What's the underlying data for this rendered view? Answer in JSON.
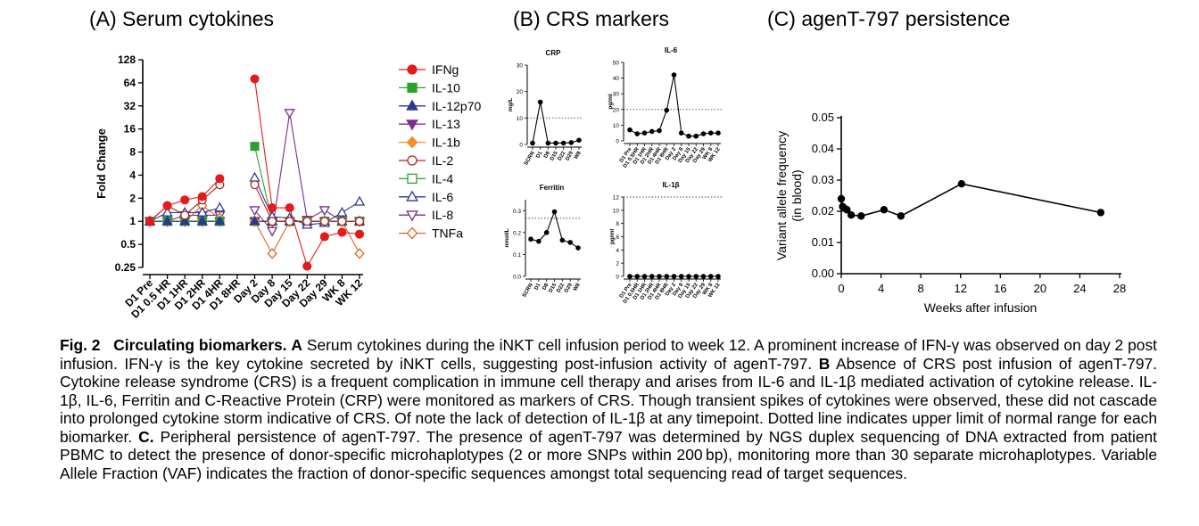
{
  "panel_titles": {
    "a": "(A) Serum cytokines",
    "b": "(B) CRS markers",
    "c": "(C) agenT-797 persistence"
  },
  "caption": {
    "fig_label": "Fig. 2",
    "heading": "Circulating biomarkers.",
    "part_a_label": "A",
    "part_a": "Serum cytokines during the iNKT cell infusion period to week 12. A prominent increase of IFN-γ was observed on day 2 post infusion. IFN-γ is the key cytokine secreted by iNKT cells, suggesting post-infusion activity of agenT-797.",
    "part_b_label": "B",
    "part_b": "Absence of CRS post infusion of agenT-797. Cytokine release syndrome (CRS) is a frequent complication in immune cell therapy and arises from IL-6 and IL-1β mediated activation of cytokine release. IL-1β, IL-6, Ferritin and C-Reactive Protein (CRP) were monitored as markers of CRS. Though transient spikes of cytokines were observed, these did not cascade into prolonged cytokine storm indicative of CRS. Of note the lack of detection of IL-1β at any timepoint. Dotted line indicates upper limit of normal range for each biomarker.",
    "part_c_label": "C.",
    "part_c": "Peripheral persistence of agenT-797. The presence of agenT-797 was determined by NGS duplex sequencing of DNA extracted from patient PBMC to detect the presence of donor-specific microhaplotypes (2 or more SNPs within 200 bp), monitoring more than 30 separate microhaplotypes. Variable Allele Fraction (VAF) indicates the fraction of donor-specific sequences amongst total sequencing read of target sequences."
  },
  "chart_data": [
    {
      "id": "A",
      "type": "line",
      "scale": "log2",
      "title": "(A) Serum cytokines",
      "xlabel": "",
      "ylabel": "Fold Change",
      "ylim": [
        0.25,
        128
      ],
      "yticks": [
        0.25,
        0.5,
        1,
        2,
        4,
        8,
        16,
        32,
        64,
        128
      ],
      "ytick_labels": [
        "0.25",
        "0.5",
        "1",
        "2",
        "4",
        "8",
        "16",
        "32",
        "64",
        "128"
      ],
      "categories": [
        "D1 Pre",
        "D1 0.5 HR",
        "D1 1HR",
        "D1 2HR",
        "D1 4HR",
        "D1 8HR",
        "Day 2",
        "Day 8",
        "Day 15",
        "Day 22",
        "Day 29",
        "WK 8",
        "WK 12"
      ],
      "series": [
        {
          "name": "IFNg",
          "color": "#e41a1c",
          "marker": "circle",
          "filled": true,
          "values": [
            1,
            1.6,
            1.9,
            2.1,
            3.6,
            null,
            72,
            1.5,
            1.5,
            0.26,
            0.63,
            0.72,
            0.68
          ]
        },
        {
          "name": "IL-10",
          "color": "#2ca02c",
          "marker": "square",
          "filled": true,
          "values": [
            1,
            1,
            1,
            1,
            1,
            null,
            9.5,
            1,
            1,
            1,
            1,
            1,
            1
          ]
        },
        {
          "name": "IL-12p70",
          "color": "#2b3a8f",
          "marker": "triangle-up",
          "filled": true,
          "values": [
            1,
            1,
            1,
            1,
            1,
            null,
            1,
            1,
            1,
            1,
            1,
            1,
            1
          ]
        },
        {
          "name": "IL-13",
          "color": "#7b2d8e",
          "marker": "triangle-down",
          "filled": true,
          "values": [
            1,
            1,
            1,
            1,
            1,
            null,
            1,
            1,
            1,
            1,
            1,
            1,
            1
          ]
        },
        {
          "name": "IL-1b",
          "color": "#f28e2b",
          "marker": "diamond",
          "filled": true,
          "values": [
            1,
            1,
            1,
            1,
            1,
            null,
            1,
            1,
            1,
            1,
            1,
            1,
            1
          ]
        },
        {
          "name": "IL-2",
          "color": "#b22222",
          "marker": "circle",
          "filled": false,
          "values": [
            1,
            1.6,
            1.2,
            1.9,
            3.0,
            null,
            3.0,
            1.0,
            1.0,
            1.0,
            1.0,
            1.0,
            1.0
          ]
        },
        {
          "name": "IL-4",
          "color": "#2ca02c",
          "marker": "square",
          "filled": false,
          "values": [
            1,
            1,
            1,
            1,
            1,
            null,
            1,
            1,
            1,
            1,
            1,
            1,
            1
          ]
        },
        {
          "name": "IL-6",
          "color": "#2b3a8f",
          "marker": "triangle-up",
          "filled": false,
          "values": [
            1,
            1.3,
            1.3,
            1.3,
            1.5,
            null,
            3.7,
            1.15,
            1.1,
            0.9,
            0.95,
            1.3,
            1.8
          ]
        },
        {
          "name": "IL-8",
          "color": "#7b2d8e",
          "marker": "triangle-down",
          "filled": false,
          "values": [
            1,
            1,
            1.2,
            1.2,
            1.2,
            null,
            1.4,
            0.75,
            26,
            1.05,
            1.4,
            1.0,
            1.0
          ]
        },
        {
          "name": "TNFa",
          "color": "#d2691e",
          "marker": "diamond",
          "filled": false,
          "values": [
            1,
            1,
            1,
            1.6,
            1.1,
            null,
            1,
            0.38,
            1.0,
            1.0,
            1.0,
            1.0,
            0.38
          ]
        }
      ]
    },
    {
      "id": "B-CRP",
      "type": "line",
      "title": "CRP",
      "ylabel": "mg/L",
      "ylim": [
        0,
        30
      ],
      "yticks": [
        0,
        10,
        20,
        30
      ],
      "ytick_labels": [
        "0",
        "10",
        "20",
        "30"
      ],
      "categories": [
        "SCRN",
        "D1",
        "D8",
        "D15",
        "D22",
        "D29",
        "W8"
      ],
      "values": [
        0.5,
        16,
        0.5,
        0.5,
        0.5,
        0.7,
        1.6
      ],
      "reference_line": 10
    },
    {
      "id": "B-IL6",
      "type": "line",
      "title": "IL-6",
      "ylabel": "pg/ml",
      "ylim": [
        0,
        50
      ],
      "yticks": [
        0,
        10,
        20,
        30,
        40,
        50
      ],
      "ytick_labels": [
        "0",
        "10",
        "20",
        "30",
        "40",
        "50"
      ],
      "categories": [
        "D1 Pre",
        "D1 0.5HR",
        "D1 1HR",
        "D1 2HR",
        "D1 4HR",
        "D1 8HR",
        "Day 2",
        "Day 8",
        "Day 15",
        "Day 22",
        "Day 29",
        "WK 8",
        "WK 12"
      ],
      "values": [
        7,
        4.5,
        5,
        6,
        6.5,
        19.5,
        42,
        5,
        3,
        3,
        4.5,
        5,
        5
      ],
      "reference_line": 20
    },
    {
      "id": "B-Ferritin",
      "type": "line",
      "title": "Ferritin",
      "ylabel": "nmol/L",
      "ylim": [
        0,
        0.35
      ],
      "yticks": [
        0.0,
        0.1,
        0.2,
        0.3
      ],
      "ytick_labels": [
        "0.0",
        "0.1",
        "0.2",
        "0.3"
      ],
      "categories": [
        "SCRN",
        "D1",
        "D8",
        "D15",
        "D22",
        "D29",
        "W8"
      ],
      "values": [
        0.17,
        0.16,
        0.2,
        0.295,
        0.165,
        0.155,
        0.13
      ],
      "reference_line": 0.265
    },
    {
      "id": "B-IL1b",
      "type": "line",
      "title": "IL-1β",
      "ylabel": "pg/ml",
      "ylim": [
        0,
        12
      ],
      "yticks": [
        0,
        2,
        4,
        6,
        8,
        10,
        12
      ],
      "ytick_labels": [
        "0",
        "2",
        "4",
        "6",
        "8",
        "10",
        "12"
      ],
      "categories": [
        "D1 Pre",
        "D1 0.5HR",
        "D1 1HR",
        "D1 2HR",
        "D1 4HR",
        "D1 8HR",
        "Day 2",
        "Day 8",
        "Day 15",
        "Day 22",
        "Day 29",
        "WK 8",
        "WK 12"
      ],
      "values": [
        0,
        0,
        0,
        0,
        0,
        0,
        0,
        0,
        0,
        0,
        0,
        0,
        0
      ],
      "reference_line": 12
    },
    {
      "id": "C",
      "type": "line",
      "title": "(C) agenT-797 persistence",
      "xlabel": "Weeks after infusion",
      "ylabel": "Variant allele frequency (in blood)",
      "ylabel_line1": "Variant allele frequency",
      "ylabel_line2": "(in blood)",
      "xlim": [
        0,
        28
      ],
      "ylim": [
        0,
        0.05
      ],
      "xticks": [
        0,
        4,
        8,
        12,
        16,
        20,
        24,
        28
      ],
      "xtick_labels": [
        "0",
        "4",
        "8",
        "12",
        "16",
        "20",
        "24",
        "28"
      ],
      "yticks": [
        0,
        0.01,
        0.02,
        0.03,
        0.04,
        0.05
      ],
      "ytick_labels": [
        "0.00",
        "0.01",
        "0.02",
        "0.03",
        "0.04",
        "0.05"
      ],
      "x": [
        0,
        0.14,
        0.29,
        0.57,
        1.0,
        2.0,
        4.3,
        6.0,
        12.1,
        26.1
      ],
      "y": [
        0.024,
        0.0215,
        0.021,
        0.0205,
        0.0188,
        0.0185,
        0.0205,
        0.0185,
        0.0288,
        0.0196
      ]
    }
  ]
}
